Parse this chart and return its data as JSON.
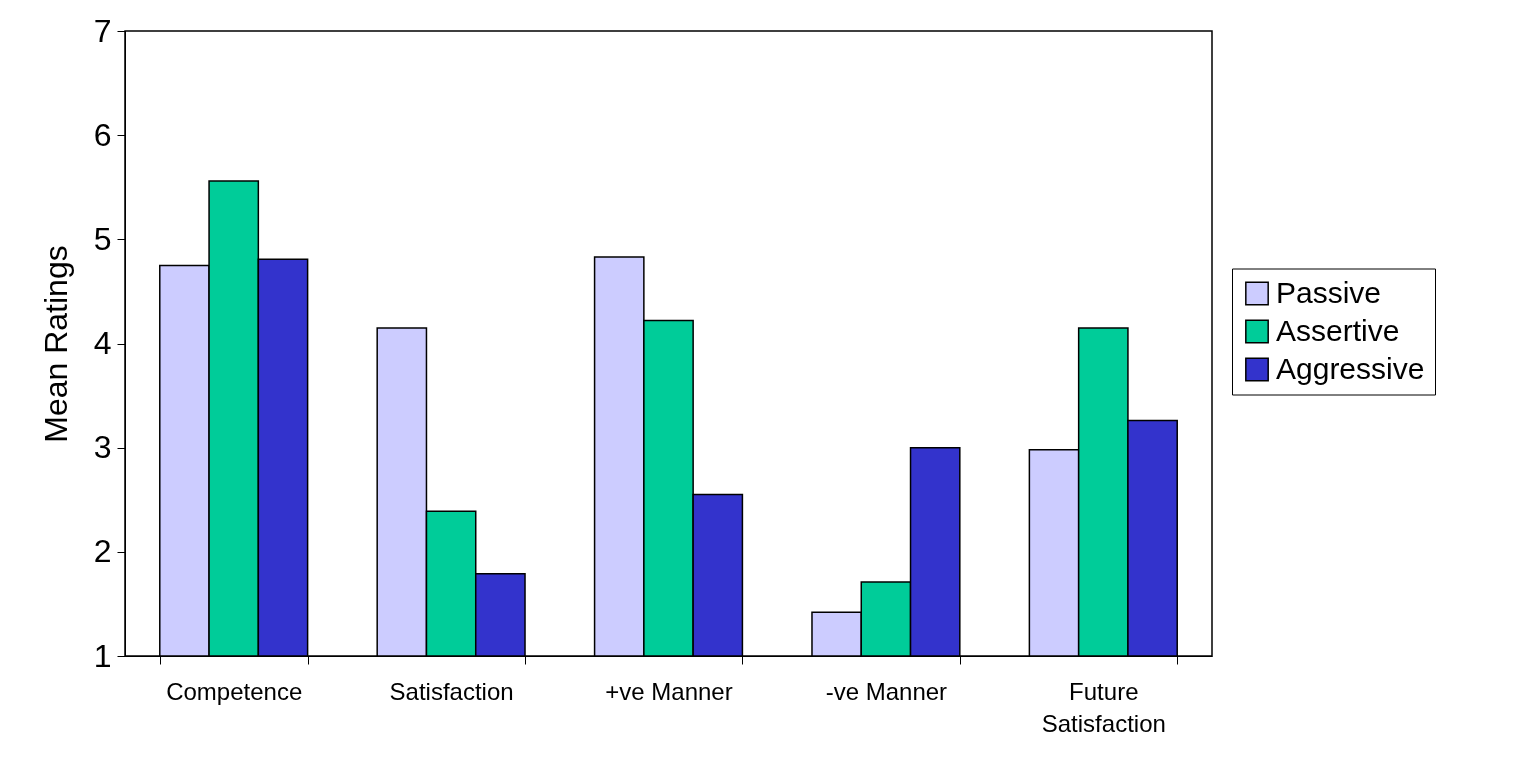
{
  "chart_data": {
    "type": "bar",
    "ylabel": "Mean Ratings",
    "categories": [
      "Competence",
      "Satisfaction",
      "+ve Manner",
      "-ve Manner",
      "Future Satisfaction"
    ],
    "series": [
      {
        "name": "Passive",
        "color": "#ccccff",
        "values": [
          4.75,
          4.15,
          4.83,
          1.42,
          2.98
        ]
      },
      {
        "name": "Assertive",
        "color": "#00cc99",
        "values": [
          5.56,
          2.39,
          4.22,
          1.71,
          4.15
        ]
      },
      {
        "name": "Aggressive",
        "color": "#3333cc",
        "values": [
          4.81,
          1.79,
          2.55,
          3.0,
          3.26
        ]
      }
    ],
    "ylim": [
      1,
      7
    ],
    "yticks": [
      1,
      2,
      3,
      4,
      5,
      6,
      7
    ],
    "grid": false,
    "legend": "right"
  }
}
